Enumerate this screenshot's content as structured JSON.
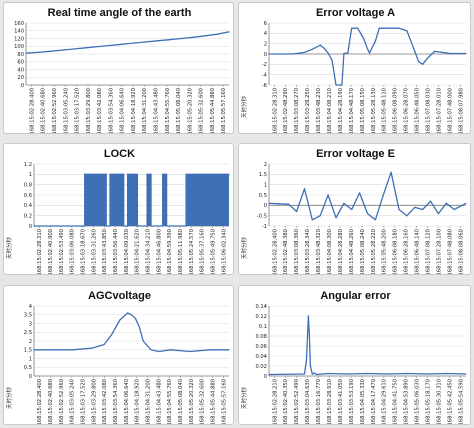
{
  "colors": {
    "series": "#3f6fb5",
    "axis": "#7d7d7d",
    "grid": "#dcdcdc"
  },
  "chart_data": [
    {
      "id": "angle",
      "type": "line",
      "title": "Real time angle of the earth",
      "ylabel": "",
      "ylim": [
        0,
        160
      ],
      "yticks": [
        0,
        20,
        40,
        60,
        80,
        100,
        120,
        140,
        160
      ],
      "categories": [
        "168:15:02:28.400",
        "168:15:02:40.680",
        "168:15:02:52.960",
        "168:15:03:05.240",
        "168:15:03:17.520",
        "168:15:03:29.800",
        "168:15:03:42.080",
        "168:15:03:54.360",
        "168:15:04:06.640",
        "168:15:04:18.920",
        "168:15:04:31.200",
        "168:15:04:43.480",
        "168:15:04:55.760",
        "168:15:05:08.040",
        "168:15:05:20.320",
        "168:15:05:32.600",
        "168:15:05:44.880",
        "168:15:05:57.160"
      ],
      "series": [
        {
          "values": [
            82,
            84,
            87,
            90,
            93,
            96,
            99,
            102,
            105,
            108,
            111,
            114,
            117,
            120,
            123,
            127,
            131,
            137
          ]
        }
      ]
    },
    {
      "id": "error-a",
      "type": "line",
      "title": "Error voltage A",
      "ylabel": "天时分秒",
      "ylim": [
        -6,
        6
      ],
      "yticks": [
        -6,
        -4,
        -2,
        0,
        2,
        4,
        6
      ],
      "categories": [
        "168:15:02:28.310",
        "168:15:02:48.290",
        "168:15:03:08.270",
        "168:15:03:28.250",
        "168:15:03:48.230",
        "168:15:04:08.210",
        "168:15:04:28.190",
        "168:15:04:48.170",
        "168:15:05:08.150",
        "168:15:05:28.130",
        "168:15:05:48.110",
        "168:15:06:08.090",
        "168:15:06:28.070",
        "168:15:06:48.050",
        "168:15:07:08.030",
        "168:15:07:28.010",
        "168:15:07:48.000",
        "168:15:08:07.980"
      ],
      "x": [
        0,
        0.12,
        0.18,
        0.22,
        0.26,
        0.28,
        0.3,
        0.32,
        0.34,
        0.37,
        0.38,
        0.4,
        0.42,
        0.45,
        0.48,
        0.5,
        0.51,
        0.54,
        0.56,
        0.58,
        0.6,
        0.62,
        0.66,
        0.7,
        0.74,
        0.76,
        0.78,
        0.8,
        0.84,
        0.88,
        0.92,
        1.0
      ],
      "series": [
        {
          "values": [
            0,
            0,
            0.3,
            0.9,
            1.7,
            1.1,
            0.2,
            -1.2,
            -6,
            -6,
            0.1,
            0.2,
            5,
            5,
            3,
            1,
            0.2,
            2.5,
            5,
            5,
            5,
            5,
            5,
            4.5,
            0.5,
            -1.5,
            -2.0,
            -1.0,
            0.5,
            0.3,
            0.1,
            0.1
          ]
        }
      ]
    },
    {
      "id": "lock",
      "type": "area",
      "title": "LOCK",
      "ylabel": "天时分秒",
      "ylim": [
        0,
        1.2
      ],
      "yticks": [
        0,
        0.2,
        0.4,
        0.6,
        0.8,
        1,
        1.2
      ],
      "categories": [
        "168:15:02:28.310",
        "168:15:02:40.900",
        "168:15:02:53.490",
        "168:15:03:06.080",
        "168:15:03:18.670",
        "168:15:03:31.260",
        "168:15:03:43.850",
        "168:15:03:56.440",
        "168:15:04:09.030",
        "168:15:04:21.620",
        "168:15:04:34.210",
        "168:15:04:46.800",
        "168:15:04:59.390",
        "168:15:05:11.980",
        "168:15:05:24.570",
        "168:15:05:37.160",
        "168:15:05:49.750",
        "168:15:06:02.340"
      ],
      "x": [
        0,
        0.26,
        0.26,
        0.37,
        0.37,
        0.39,
        0.39,
        0.46,
        0.46,
        0.48,
        0.48,
        0.53,
        0.53,
        0.58,
        0.58,
        0.6,
        0.6,
        0.66,
        0.66,
        0.68,
        0.68,
        0.78,
        0.78,
        1.0
      ],
      "series": [
        {
          "values": [
            0,
            0,
            1,
            1,
            0,
            0,
            1,
            1,
            0,
            0,
            1,
            1,
            0,
            0,
            1,
            1,
            0,
            0,
            1,
            1,
            0,
            0,
            1,
            1
          ]
        }
      ]
    },
    {
      "id": "error-e",
      "type": "line",
      "title": "Error voltage E",
      "ylabel": "天时分秒",
      "ylim": [
        -1,
        2
      ],
      "yticks": [
        -1,
        -0.5,
        0,
        0.5,
        1,
        1.5,
        2
      ],
      "categories": [
        "168:15:02:28.400",
        "168:15:02:48.380",
        "168:15:03:08.360",
        "168:15:03:28.340",
        "168:15:03:48.320",
        "168:15:04:08.300",
        "168:15:04:28.280",
        "168:15:04:48.260",
        "168:15:05:08.240",
        "168:15:05:28.220",
        "168:15:05:48.200",
        "168:15:06:08.180",
        "168:15:06:28.160",
        "168:15:06:48.140",
        "168:15:07:08.120",
        "168:15:07:28.100",
        "168:15:07:48.080",
        "168:15:08:08.060"
      ],
      "x": [
        0,
        0.1,
        0.14,
        0.18,
        0.22,
        0.26,
        0.3,
        0.34,
        0.38,
        0.42,
        0.46,
        0.5,
        0.54,
        0.58,
        0.62,
        0.66,
        0.7,
        0.74,
        0.78,
        0.82,
        0.86,
        0.9,
        0.94,
        1.0
      ],
      "series": [
        {
          "values": [
            0.1,
            0.05,
            -0.3,
            0.8,
            -0.7,
            -0.5,
            0.5,
            -0.6,
            0.1,
            -0.2,
            0.6,
            -0.4,
            -0.7,
            0.5,
            1.6,
            -0.2,
            -0.5,
            -0.1,
            -0.2,
            0.2,
            -0.4,
            0.1,
            -0.2,
            0.1
          ]
        }
      ]
    },
    {
      "id": "agc",
      "type": "line",
      "title": "AGCvoltage",
      "ylabel": "天时分秒",
      "ylim": [
        0,
        4
      ],
      "yticks": [
        0,
        0.5,
        1,
        1.5,
        2,
        2.5,
        3,
        3.5,
        4
      ],
      "categories": [
        "168:15:02:28.400",
        "168:15:02:40.680",
        "168:15:02:52.960",
        "168:15:03:05.240",
        "168:15:03:17.520",
        "168:15:03:29.800",
        "168:15:03:42.080",
        "168:15:03:54.360",
        "168:15:04:06.640",
        "168:15:04:18.920",
        "168:15:04:31.200",
        "168:15:04:43.480",
        "168:15:04:55.760",
        "168:15:05:08.040",
        "168:15:05:20.320",
        "168:15:05:32.600",
        "168:15:05:44.880",
        "168:15:05:57.160"
      ],
      "x": [
        0,
        0.2,
        0.3,
        0.36,
        0.4,
        0.44,
        0.48,
        0.5,
        0.52,
        0.54,
        0.56,
        0.6,
        0.64,
        0.7,
        0.8,
        0.9,
        1.0
      ],
      "series": [
        {
          "values": [
            1.5,
            1.5,
            1.6,
            1.8,
            2.4,
            3.2,
            3.6,
            3.5,
            3.3,
            2.8,
            2.0,
            1.5,
            1.4,
            1.5,
            1.4,
            1.5,
            1.5
          ]
        }
      ]
    },
    {
      "id": "angular",
      "type": "line",
      "title": "Angular error",
      "ylabel": "天时分秒",
      "ylim": [
        0,
        0.14
      ],
      "yticks": [
        0,
        0.02,
        0.04,
        0.06,
        0.08,
        0.1,
        0.12,
        0.14
      ],
      "categories": [
        "168:15:02:28.210",
        "168:15:02:40.350",
        "168:15:02:52.490",
        "168:15:03:04.630",
        "168:15:03:16.770",
        "168:15:03:28.910",
        "168:15:03:41.050",
        "168:15:03:53.190",
        "168:15:04:05.330",
        "168:15:04:17.470",
        "168:15:04:29.610",
        "168:15:04:41.750",
        "168:15:04:53.890",
        "168:15:05:06.030",
        "168:15:05:18.170",
        "168:15:05:30.310",
        "168:15:05:42.450",
        "168:15:05:54.590"
      ],
      "x": [
        0,
        0.18,
        0.19,
        0.2,
        0.205,
        0.21,
        0.22,
        0.23,
        0.24,
        0.3,
        0.4,
        0.5,
        0.6,
        0.7,
        0.8,
        0.9,
        1.0
      ],
      "series": [
        {
          "values": [
            0.003,
            0.004,
            0.03,
            0.12,
            0.08,
            0.02,
            0.004,
            0.006,
            0.003,
            0.005,
            0.004,
            0.005,
            0.004,
            0.005,
            0.004,
            0.005,
            0.004
          ]
        }
      ]
    }
  ]
}
